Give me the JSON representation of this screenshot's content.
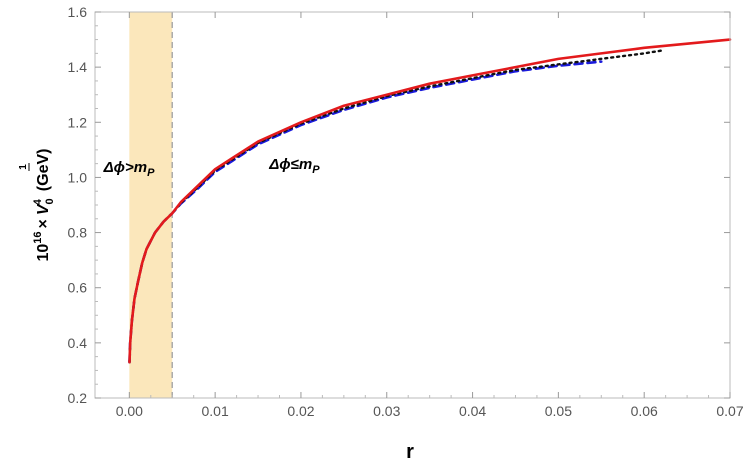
{
  "chart_data": {
    "type": "line",
    "xlabel": "r",
    "ylabel": {
      "prefix": "10",
      "prefix_exp": "16",
      "times": "×",
      "var": "V",
      "var_sub": "0",
      "frac_num": "1",
      "frac_den": "4",
      "unit": "(GeV)"
    },
    "xlim": [
      -0.004,
      0.07
    ],
    "ylim": [
      0.2,
      1.6
    ],
    "x_ticks": [
      0.0,
      0.01,
      0.02,
      0.03,
      0.04,
      0.05,
      0.06,
      0.07
    ],
    "x_tick_labels": [
      "0.00",
      "0.01",
      "0.02",
      "0.03",
      "0.04",
      "0.05",
      "0.06",
      "0.07"
    ],
    "y_ticks": [
      0.2,
      0.4,
      0.6,
      0.8,
      1.0,
      1.2,
      1.4,
      1.6
    ],
    "y_tick_labels": [
      "0.2",
      "0.4",
      "0.6",
      "0.8",
      "1.0",
      "1.2",
      "1.4",
      "1.6"
    ],
    "grid": false,
    "shaded_region": {
      "x": [
        0.0,
        0.005
      ],
      "color": "#fbe7bb",
      "boundary_line_x": 0.005,
      "boundary_color": "#aaaaaa"
    },
    "annotations": [
      {
        "text_main": "Δϕ>m",
        "text_sub": "P",
        "x": -0.003,
        "y": 1.02
      },
      {
        "text_main": "Δϕ≤m",
        "text_sub": "P",
        "x": 0.0163,
        "y": 1.03
      }
    ],
    "series": [
      {
        "color": "#e31a1c",
        "style": "solid",
        "x": [
          2e-05,
          0.0001,
          0.0003,
          0.0006,
          0.001,
          0.0015,
          0.002,
          0.003,
          0.004,
          0.005,
          0.006,
          0.008,
          0.01,
          0.012,
          0.015,
          0.02,
          0.025,
          0.03,
          0.035,
          0.04,
          0.045,
          0.05,
          0.055,
          0.06,
          0.065,
          0.07
        ],
        "values": [
          0.33,
          0.4,
          0.48,
          0.56,
          0.62,
          0.69,
          0.74,
          0.8,
          0.84,
          0.87,
          0.91,
          0.97,
          1.03,
          1.07,
          1.13,
          1.2,
          1.26,
          1.3,
          1.34,
          1.37,
          1.4,
          1.43,
          1.45,
          1.47,
          1.485,
          1.5
        ]
      },
      {
        "color": "#1a1adc",
        "style": "dashed",
        "x": [
          2e-05,
          0.0001,
          0.0003,
          0.0006,
          0.001,
          0.0015,
          0.002,
          0.003,
          0.004,
          0.005,
          0.006,
          0.008,
          0.01,
          0.012,
          0.015,
          0.02,
          0.025,
          0.03,
          0.035,
          0.04,
          0.045,
          0.05,
          0.055
        ],
        "values": [
          0.33,
          0.4,
          0.48,
          0.56,
          0.62,
          0.69,
          0.74,
          0.8,
          0.84,
          0.87,
          0.905,
          0.96,
          1.02,
          1.06,
          1.12,
          1.19,
          1.245,
          1.29,
          1.325,
          1.355,
          1.385,
          1.405,
          1.42
        ]
      },
      {
        "color": "#111111",
        "style": "dotted",
        "x": [
          2e-05,
          0.0001,
          0.0003,
          0.0006,
          0.001,
          0.0015,
          0.002,
          0.003,
          0.004,
          0.005,
          0.006,
          0.008,
          0.01,
          0.012,
          0.015,
          0.02,
          0.025,
          0.03,
          0.035,
          0.04,
          0.045,
          0.05,
          0.055,
          0.06,
          0.062
        ],
        "values": [
          0.33,
          0.4,
          0.48,
          0.56,
          0.62,
          0.69,
          0.74,
          0.8,
          0.84,
          0.87,
          0.907,
          0.965,
          1.025,
          1.065,
          1.125,
          1.195,
          1.25,
          1.295,
          1.33,
          1.36,
          1.39,
          1.41,
          1.43,
          1.45,
          1.46
        ]
      }
    ]
  }
}
